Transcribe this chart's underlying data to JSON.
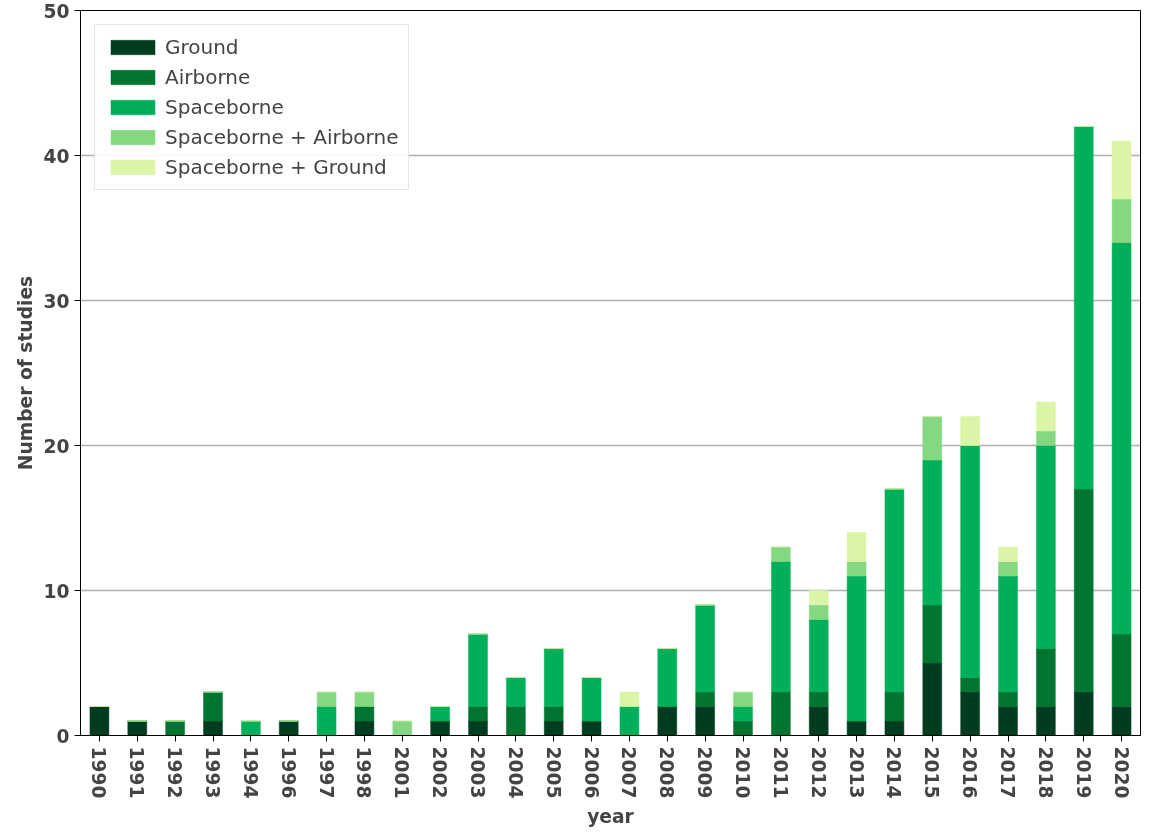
{
  "chart_data": {
    "type": "bar",
    "stacked": true,
    "xlabel": "year",
    "ylabel": "Number of studies",
    "categories": [
      "1990",
      "1991",
      "1992",
      "1993",
      "1994",
      "1996",
      "1997",
      "1998",
      "2001",
      "2002",
      "2003",
      "2004",
      "2005",
      "2006",
      "2007",
      "2008",
      "2009",
      "2010",
      "2011",
      "2012",
      "2013",
      "2014",
      "2015",
      "2016",
      "2017",
      "2018",
      "2019",
      "2020"
    ],
    "series": [
      {
        "name": "Ground",
        "color": "#003d20",
        "values": [
          2,
          1,
          0,
          1,
          0,
          1,
          0,
          1,
          0,
          1,
          1,
          0,
          1,
          1,
          0,
          2,
          2,
          0,
          0,
          2,
          1,
          1,
          5,
          3,
          2,
          2,
          3,
          2
        ]
      },
      {
        "name": "Airborne",
        "color": "#007532",
        "values": [
          0,
          0,
          1,
          2,
          0,
          0,
          0,
          1,
          0,
          0,
          1,
          2,
          1,
          0,
          0,
          0,
          1,
          1,
          3,
          1,
          0,
          2,
          4,
          1,
          1,
          4,
          14,
          5
        ]
      },
      {
        "name": "Spaceborne",
        "color": "#00af5a",
        "values": [
          0,
          0,
          0,
          0,
          1,
          0,
          2,
          0,
          0,
          1,
          5,
          2,
          4,
          3,
          2,
          4,
          6,
          1,
          9,
          5,
          10,
          14,
          10,
          16,
          8,
          14,
          25,
          27
        ]
      },
      {
        "name": "Spaceborne + Airborne",
        "color": "#84d882",
        "values": [
          0,
          0,
          0,
          0,
          0,
          0,
          1,
          1,
          1,
          0,
          0,
          0,
          0,
          0,
          0,
          0,
          0,
          1,
          1,
          1,
          1,
          0,
          3,
          0,
          1,
          1,
          0,
          3
        ]
      },
      {
        "name": "Spaceborne + Ground",
        "color": "#daf5a6",
        "values": [
          0,
          0,
          0,
          0,
          0,
          0,
          0,
          0,
          0,
          0,
          0,
          0,
          0,
          0,
          1,
          0,
          0,
          0,
          0,
          1,
          2,
          0,
          0,
          2,
          1,
          2,
          0,
          4
        ]
      }
    ],
    "ylim": [
      0,
      50
    ],
    "yticks": [
      0,
      10,
      20,
      30,
      40,
      50
    ],
    "grid": "y",
    "legend": "top left"
  }
}
